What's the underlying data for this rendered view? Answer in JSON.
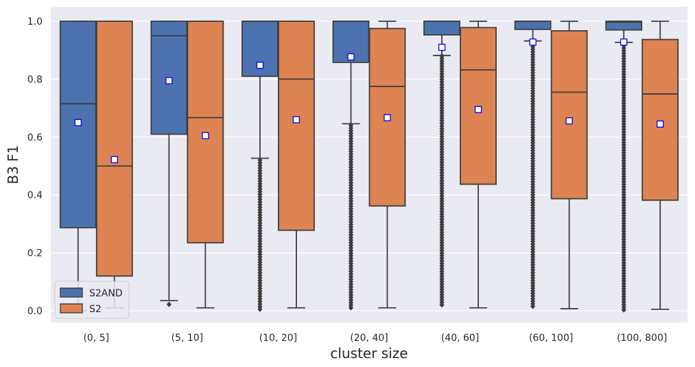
{
  "chart_data": {
    "type": "boxplot",
    "xlabel": "cluster size",
    "ylabel": "B3 F1",
    "ylim": [
      -0.04,
      1.04
    ],
    "yticks": [
      0.0,
      0.2,
      0.4,
      0.6,
      0.8,
      1.0
    ],
    "ytick_labels": [
      "0.0",
      "0.2",
      "0.4",
      "0.6",
      "0.8",
      "1.0"
    ],
    "grid": true,
    "legend_position": "lower-left",
    "categories": [
      "(0, 5]",
      "(5, 10]",
      "(10, 20]",
      "(20, 40]",
      "(40, 60]",
      "(60, 100]",
      "(100, 800]"
    ],
    "colors": {
      "background": "#eaeaf2",
      "grid": "#ffffff",
      "box_line": "#3d3d3d",
      "mean_fill": "#ffffff",
      "mean_edge": "#0000ff"
    },
    "series": [
      {
        "name": "S2AND",
        "color": "#4c72b0",
        "boxes": [
          {
            "q1": 0.287,
            "median": 0.715,
            "q3": 1.0,
            "wlow": 0.0,
            "whigh": 1.0,
            "mean": 0.65,
            "outliers": []
          },
          {
            "q1": 0.61,
            "median": 0.95,
            "q3": 1.0,
            "wlow": 0.035,
            "whigh": 1.0,
            "mean": 0.795,
            "outliers": [
              0.022
            ]
          },
          {
            "q1": 0.81,
            "median": 1.0,
            "q3": 1.0,
            "wlow": 0.527,
            "whigh": 1.0,
            "mean": 0.848,
            "outliers_range": [
              0.005,
              0.52
            ]
          },
          {
            "q1": 0.858,
            "median": 1.0,
            "q3": 1.0,
            "wlow": 0.646,
            "whigh": 1.0,
            "mean": 0.877,
            "outliers_range": [
              0.01,
              0.64
            ]
          },
          {
            "q1": 0.953,
            "median": 1.0,
            "q3": 1.0,
            "wlow": 0.882,
            "whigh": 1.0,
            "mean": 0.91,
            "outliers_range": [
              0.02,
              0.88
            ]
          },
          {
            "q1": 0.972,
            "median": 1.0,
            "q3": 1.0,
            "wlow": 0.932,
            "whigh": 1.0,
            "mean": 0.928,
            "outliers_range": [
              0.015,
              0.93
            ]
          },
          {
            "q1": 0.97,
            "median": 0.997,
            "q3": 1.0,
            "wlow": 0.927,
            "whigh": 1.0,
            "mean": 0.928,
            "outliers_range": [
              0.003,
              0.925
            ]
          }
        ]
      },
      {
        "name": "S2",
        "color": "#dd8452",
        "boxes": [
          {
            "q1": 0.12,
            "median": 0.5,
            "q3": 1.0,
            "wlow": 0.01,
            "whigh": 1.0,
            "mean": 0.522,
            "outliers": []
          },
          {
            "q1": 0.235,
            "median": 0.667,
            "q3": 1.0,
            "wlow": 0.01,
            "whigh": 1.0,
            "mean": 0.605,
            "outliers": []
          },
          {
            "q1": 0.278,
            "median": 0.8,
            "q3": 1.0,
            "wlow": 0.01,
            "whigh": 1.0,
            "mean": 0.66,
            "outliers": []
          },
          {
            "q1": 0.362,
            "median": 0.775,
            "q3": 0.975,
            "wlow": 0.01,
            "whigh": 1.0,
            "mean": 0.667,
            "outliers": []
          },
          {
            "q1": 0.437,
            "median": 0.832,
            "q3": 0.978,
            "wlow": 0.01,
            "whigh": 1.0,
            "mean": 0.695,
            "outliers": []
          },
          {
            "q1": 0.387,
            "median": 0.755,
            "q3": 0.967,
            "wlow": 0.007,
            "whigh": 1.0,
            "mean": 0.656,
            "outliers": []
          },
          {
            "q1": 0.382,
            "median": 0.749,
            "q3": 0.937,
            "wlow": 0.005,
            "whigh": 1.0,
            "mean": 0.645,
            "outliers": []
          }
        ]
      }
    ]
  }
}
